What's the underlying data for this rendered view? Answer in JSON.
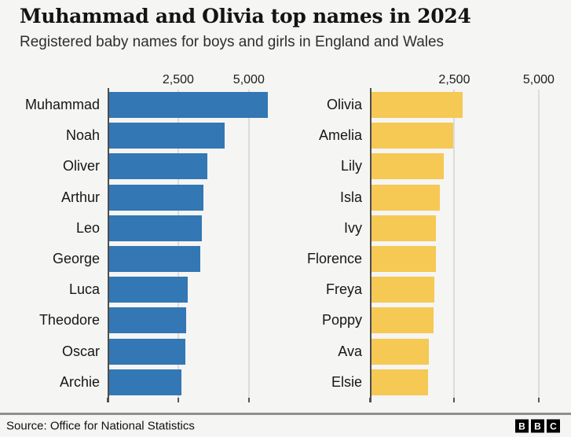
{
  "header": {
    "title": "Muhammad and Olivia top names in 2024",
    "subtitle": "Registered baby names for boys and girls in England and Wales"
  },
  "footer": {
    "source": "Source: Office for National Statistics",
    "logo_letters": [
      "B",
      "B",
      "C"
    ]
  },
  "colors": {
    "background": "#f5f5f3",
    "boys_bar": "#3377b4",
    "girls_bar": "#f6c854",
    "gridline": "#dcdcd9",
    "axis": "#4d4d4d",
    "footer_rule": "#8f8f8f"
  },
  "chart_data": [
    {
      "type": "bar",
      "orientation": "horizontal",
      "series_name": "Boys",
      "bar_color": "#3377b4",
      "categories": [
        "Muhammad",
        "Noah",
        "Oliver",
        "Arthur",
        "Leo",
        "George",
        "Luca",
        "Theodore",
        "Oscar",
        "Archie"
      ],
      "values": [
        5680,
        4130,
        3520,
        3390,
        3340,
        3290,
        2840,
        2780,
        2760,
        2600
      ],
      "xlim": [
        0,
        6200
      ],
      "ticks": [
        {
          "value": 2500,
          "label": "2,500"
        },
        {
          "value": 5000,
          "label": "5,000"
        }
      ],
      "grid": true,
      "legend": false
    },
    {
      "type": "bar",
      "orientation": "horizontal",
      "series_name": "Girls",
      "bar_color": "#f6c854",
      "categories": [
        "Olivia",
        "Amelia",
        "Lily",
        "Isla",
        "Ivy",
        "Florence",
        "Freya",
        "Poppy",
        "Ava",
        "Elsie"
      ],
      "values": [
        2740,
        2460,
        2190,
        2060,
        1960,
        1950,
        1910,
        1890,
        1750,
        1720
      ],
      "xlim": [
        0,
        5630
      ],
      "ticks": [
        {
          "value": 2500,
          "label": "2,500"
        },
        {
          "value": 5000,
          "label": "5,000"
        }
      ],
      "grid": true,
      "legend": false
    }
  ]
}
